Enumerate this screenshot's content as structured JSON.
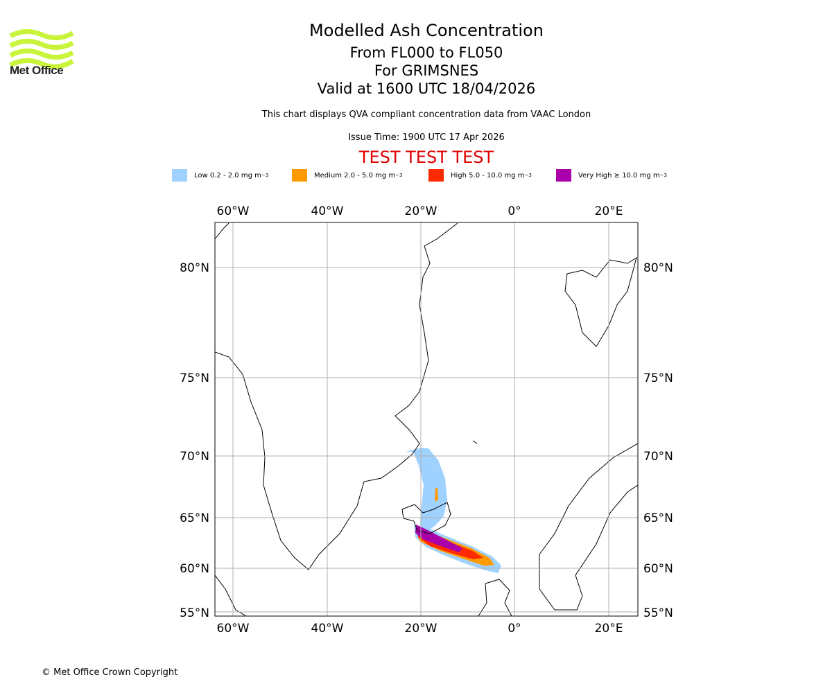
{
  "logo": {
    "text": "Met Office",
    "color": "#c8f53c"
  },
  "header": {
    "title": "Modelled Ash Concentration",
    "levels": "From FL000 to FL050",
    "location": "For GRIMSNES",
    "valid": "Valid at 1600 UTC 18/04/2026",
    "description": "This chart displays QVA compliant concentration data from VAAC London",
    "issue_time": "Issue Time: 1900 UTC 17 Apr 2026",
    "test_banner": "TEST TEST TEST"
  },
  "legend": [
    {
      "label": "Low 0.2 - 2.0 mg m",
      "color": "#a0d2ff"
    },
    {
      "label": "Medium 2.0 - 5.0 mg m",
      "color": "#ff9a00"
    },
    {
      "label": "High 5.0 - 10.0 mg m",
      "color": "#ff2a00"
    },
    {
      "label": "Very High  ≥  10.0 mg m",
      "color": "#aa00aa"
    }
  ],
  "legend_exp": "−3",
  "map": {
    "lon_labels": [
      "60°W",
      "40°W",
      "20°W",
      "0°",
      "20°E"
    ],
    "lat_labels": [
      "80°N",
      "75°N",
      "70°N",
      "65°N",
      "60°N",
      "55°N"
    ],
    "projection": "mercator",
    "extent_lon": [
      -63.8,
      26.3
    ],
    "extent_lat": [
      54.5,
      81.5
    ]
  },
  "footer": {
    "copyright": "© Met Office Crown Copyright"
  }
}
